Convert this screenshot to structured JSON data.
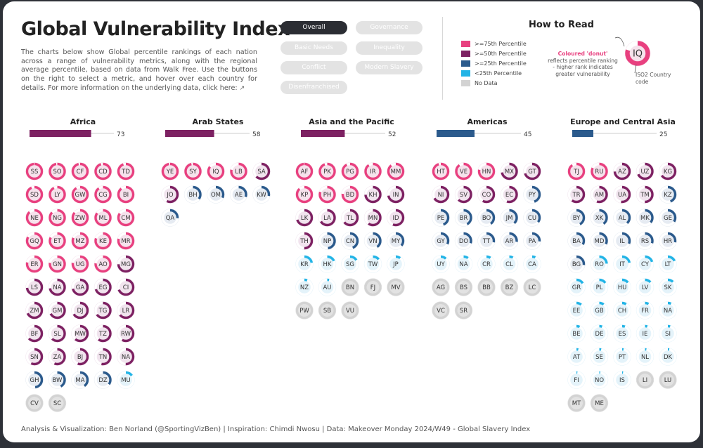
{
  "header": {
    "title": "Global Vulnerability Index",
    "description": "The charts below show Global percentile rankings of each nation across a range of vulnerability metrics, along with the regional average percentile, based on data from Walk Free. Use the buttons on the right to select a metric, and hover over each country for details. For more information on the underlying data, click here:"
  },
  "buttons": [
    {
      "label": "Overall",
      "active": true
    },
    {
      "label": "Governance",
      "active": false
    },
    {
      "label": "Basic Needs",
      "active": false
    },
    {
      "label": "Inequality",
      "active": false
    },
    {
      "label": "Conflict",
      "active": false
    },
    {
      "label": "Modern Slavery",
      "active": false
    },
    {
      "label": "Disenfranchised",
      "active": false
    }
  ],
  "how_to_read": {
    "title": "How to Read",
    "legend": [
      {
        "label": ">=75th Percentile",
        "color": "#e8407f"
      },
      {
        "label": ">=50th Percentile",
        "color": "#7d2162"
      },
      {
        "label": ">=25th Percentile",
        "color": "#2b5a8c"
      },
      {
        "label": "<25th Percentile",
        "color": "#22b4e6"
      },
      {
        "label": "No Data",
        "color": "#d3d3d3"
      }
    ],
    "annotation_highlight": "Coloured 'donut'",
    "annotation_text": "reflects percentile ranking - higher rank indicates greater vulnerability",
    "example_code": "IQ",
    "example_percent": 80,
    "iso_note": "ISO2 Country code"
  },
  "footer": "Analysis & Visualization: Ben Norland (@SportingVizBen) | Inspiration: Chimdi Nwosu | Data: Makeover Monday 2024/W49 - Global Slavery Index",
  "colors": {
    "top": "#e8407f",
    "upper": "#7d2162",
    "lower": "#2b5a8c",
    "bottom": "#22b4e6",
    "nodata": "#d3d3d3",
    "bar_track": "#cccccc"
  },
  "chart_data": {
    "type": "donut-grid",
    "metric": "Overall",
    "xlim": [
      0,
      100
    ],
    "regions": [
      {
        "name": "Africa",
        "average": 73,
        "countries": [
          {
            "code": "SS",
            "p": 98
          },
          {
            "code": "SO",
            "p": 97
          },
          {
            "code": "CF",
            "p": 96
          },
          {
            "code": "CD",
            "p": 95
          },
          {
            "code": "TD",
            "p": 94
          },
          {
            "code": "SD",
            "p": 93
          },
          {
            "code": "LY",
            "p": 92
          },
          {
            "code": "GW",
            "p": 91
          },
          {
            "code": "CG",
            "p": 90
          },
          {
            "code": "BI",
            "p": 89
          },
          {
            "code": "NE",
            "p": 88
          },
          {
            "code": "NG",
            "p": 87
          },
          {
            "code": "ZW",
            "p": 86
          },
          {
            "code": "ML",
            "p": 85
          },
          {
            "code": "CM",
            "p": 84
          },
          {
            "code": "GQ",
            "p": 83
          },
          {
            "code": "ET",
            "p": 82
          },
          {
            "code": "MZ",
            "p": 81
          },
          {
            "code": "KE",
            "p": 80
          },
          {
            "code": "MR",
            "p": 79
          },
          {
            "code": "ER",
            "p": 78
          },
          {
            "code": "GN",
            "p": 77
          },
          {
            "code": "UG",
            "p": 77
          },
          {
            "code": "AO",
            "p": 76
          },
          {
            "code": "MG",
            "p": 74
          },
          {
            "code": "LS",
            "p": 73
          },
          {
            "code": "NA",
            "p": 72
          },
          {
            "code": "GA",
            "p": 71
          },
          {
            "code": "EG",
            "p": 70
          },
          {
            "code": "CI",
            "p": 69
          },
          {
            "code": "ZM",
            "p": 68
          },
          {
            "code": "GM",
            "p": 67
          },
          {
            "code": "DJ",
            "p": 66
          },
          {
            "code": "TG",
            "p": 65
          },
          {
            "code": "LR",
            "p": 64
          },
          {
            "code": "BF",
            "p": 63
          },
          {
            "code": "SL",
            "p": 62
          },
          {
            "code": "MW",
            "p": 61
          },
          {
            "code": "TZ",
            "p": 60
          },
          {
            "code": "RW",
            "p": 58
          },
          {
            "code": "SN",
            "p": 57
          },
          {
            "code": "ZA",
            "p": 56
          },
          {
            "code": "BJ",
            "p": 55
          },
          {
            "code": "TN",
            "p": 53
          },
          {
            "code": "NA",
            "p": 50
          },
          {
            "code": "GH",
            "p": 48
          },
          {
            "code": "BW",
            "p": 42
          },
          {
            "code": "MA",
            "p": 40
          },
          {
            "code": "DZ",
            "p": 35
          },
          {
            "code": "MU",
            "p": 15
          },
          {
            "code": "CV",
            "p": null
          },
          {
            "code": "SC",
            "p": null
          }
        ]
      },
      {
        "name": "Arab States",
        "average": 58,
        "countries": [
          {
            "code": "YE",
            "p": 97
          },
          {
            "code": "SY",
            "p": 96
          },
          {
            "code": "IQ",
            "p": 85
          },
          {
            "code": "LB",
            "p": 78
          },
          {
            "code": "SA",
            "p": 62
          },
          {
            "code": "JO",
            "p": 57
          },
          {
            "code": "BH",
            "p": 35
          },
          {
            "code": "OM",
            "p": 32
          },
          {
            "code": "AE",
            "p": 30
          },
          {
            "code": "KW",
            "p": 28
          },
          {
            "code": "QA",
            "p": 26
          }
        ]
      },
      {
        "name": "Asia and the Pacific",
        "average": 52,
        "countries": [
          {
            "code": "AF",
            "p": 98
          },
          {
            "code": "PK",
            "p": 94
          },
          {
            "code": "PG",
            "p": 92
          },
          {
            "code": "IR",
            "p": 90
          },
          {
            "code": "MM",
            "p": 89
          },
          {
            "code": "KP",
            "p": 88
          },
          {
            "code": "PH",
            "p": 80
          },
          {
            "code": "BD",
            "p": 76
          },
          {
            "code": "KH",
            "p": 74
          },
          {
            "code": "IN",
            "p": 72
          },
          {
            "code": "LK",
            "p": 70
          },
          {
            "code": "LA",
            "p": 66
          },
          {
            "code": "TL",
            "p": 64
          },
          {
            "code": "MN",
            "p": 60
          },
          {
            "code": "ID",
            "p": 56
          },
          {
            "code": "TH",
            "p": 50
          },
          {
            "code": "NP",
            "p": 48
          },
          {
            "code": "CN",
            "p": 44
          },
          {
            "code": "VN",
            "p": 40
          },
          {
            "code": "MY",
            "p": 36
          },
          {
            "code": "KR",
            "p": 22
          },
          {
            "code": "HK",
            "p": 18
          },
          {
            "code": "SG",
            "p": 16
          },
          {
            "code": "TW",
            "p": 14
          },
          {
            "code": "JP",
            "p": 10
          },
          {
            "code": "NZ",
            "p": 6
          },
          {
            "code": "AU",
            "p": 4
          },
          {
            "code": "BN",
            "p": null
          },
          {
            "code": "FJ",
            "p": null
          },
          {
            "code": "MV",
            "p": null
          },
          {
            "code": "PW",
            "p": null
          },
          {
            "code": "SB",
            "p": null
          },
          {
            "code": "VU",
            "p": null
          }
        ]
      },
      {
        "name": "Americas",
        "average": 45,
        "countries": [
          {
            "code": "HT",
            "p": 95
          },
          {
            "code": "VE",
            "p": 90
          },
          {
            "code": "HN",
            "p": 78
          },
          {
            "code": "MX",
            "p": 72
          },
          {
            "code": "GT",
            "p": 70
          },
          {
            "code": "NI",
            "p": 66
          },
          {
            "code": "SV",
            "p": 62
          },
          {
            "code": "CO",
            "p": 58
          },
          {
            "code": "EC",
            "p": 55
          },
          {
            "code": "PY",
            "p": 45
          },
          {
            "code": "PE",
            "p": 44
          },
          {
            "code": "BR",
            "p": 42
          },
          {
            "code": "BO",
            "p": 40
          },
          {
            "code": "JM",
            "p": 38
          },
          {
            "code": "CU",
            "p": 35
          },
          {
            "code": "GY",
            "p": 32
          },
          {
            "code": "DO",
            "p": 30
          },
          {
            "code": "TT",
            "p": 28
          },
          {
            "code": "AR",
            "p": 27
          },
          {
            "code": "PA",
            "p": 26
          },
          {
            "code": "UY",
            "p": 12
          },
          {
            "code": "NA",
            "p": 10
          },
          {
            "code": "CR",
            "p": 9
          },
          {
            "code": "CL",
            "p": 8
          },
          {
            "code": "CA",
            "p": 7
          },
          {
            "code": "AG",
            "p": null
          },
          {
            "code": "BS",
            "p": null
          },
          {
            "code": "BB",
            "p": null
          },
          {
            "code": "BZ",
            "p": null
          },
          {
            "code": "LC",
            "p": null
          },
          {
            "code": "VC",
            "p": null
          },
          {
            "code": "SR",
            "p": null
          }
        ]
      },
      {
        "name": "Europe and Central Asia",
        "average": 25,
        "countries": [
          {
            "code": "TJ",
            "p": 90
          },
          {
            "code": "RU",
            "p": 82
          },
          {
            "code": "AZ",
            "p": 74
          },
          {
            "code": "UZ",
            "p": 68
          },
          {
            "code": "KG",
            "p": 65
          },
          {
            "code": "TR",
            "p": 60
          },
          {
            "code": "AM",
            "p": 55
          },
          {
            "code": "UA",
            "p": 52
          },
          {
            "code": "TM",
            "p": 50
          },
          {
            "code": "KZ",
            "p": 44
          },
          {
            "code": "BY",
            "p": 42
          },
          {
            "code": "XK",
            "p": 40
          },
          {
            "code": "AL",
            "p": 38
          },
          {
            "code": "MK",
            "p": 36
          },
          {
            "code": "GE",
            "p": 34
          },
          {
            "code": "BA",
            "p": 33
          },
          {
            "code": "MD",
            "p": 32
          },
          {
            "code": "IL",
            "p": 31
          },
          {
            "code": "RS",
            "p": 30
          },
          {
            "code": "HR",
            "p": 28
          },
          {
            "code": "BG",
            "p": 27
          },
          {
            "code": "RO",
            "p": 24
          },
          {
            "code": "IT",
            "p": 22
          },
          {
            "code": "CY",
            "p": 20
          },
          {
            "code": "LT",
            "p": 18
          },
          {
            "code": "GR",
            "p": 16
          },
          {
            "code": "PL",
            "p": 15
          },
          {
            "code": "HU",
            "p": 14
          },
          {
            "code": "LV",
            "p": 13
          },
          {
            "code": "SK",
            "p": 12
          },
          {
            "code": "EE",
            "p": 11
          },
          {
            "code": "GB",
            "p": 10
          },
          {
            "code": "CH",
            "p": 9
          },
          {
            "code": "FR",
            "p": 8
          },
          {
            "code": "NA",
            "p": 7
          },
          {
            "code": "BE",
            "p": 7
          },
          {
            "code": "DE",
            "p": 6
          },
          {
            "code": "ES",
            "p": 6
          },
          {
            "code": "IE",
            "p": 5
          },
          {
            "code": "SI",
            "p": 5
          },
          {
            "code": "AT",
            "p": 4
          },
          {
            "code": "SE",
            "p": 4
          },
          {
            "code": "PT",
            "p": 3
          },
          {
            "code": "NL",
            "p": 3
          },
          {
            "code": "DK",
            "p": 3
          },
          {
            "code": "FI",
            "p": 2
          },
          {
            "code": "NO",
            "p": 2
          },
          {
            "code": "IS",
            "p": 2
          },
          {
            "code": "LI",
            "p": null
          },
          {
            "code": "LU",
            "p": null
          },
          {
            "code": "MT",
            "p": null
          },
          {
            "code": "ME",
            "p": null
          }
        ]
      }
    ]
  }
}
